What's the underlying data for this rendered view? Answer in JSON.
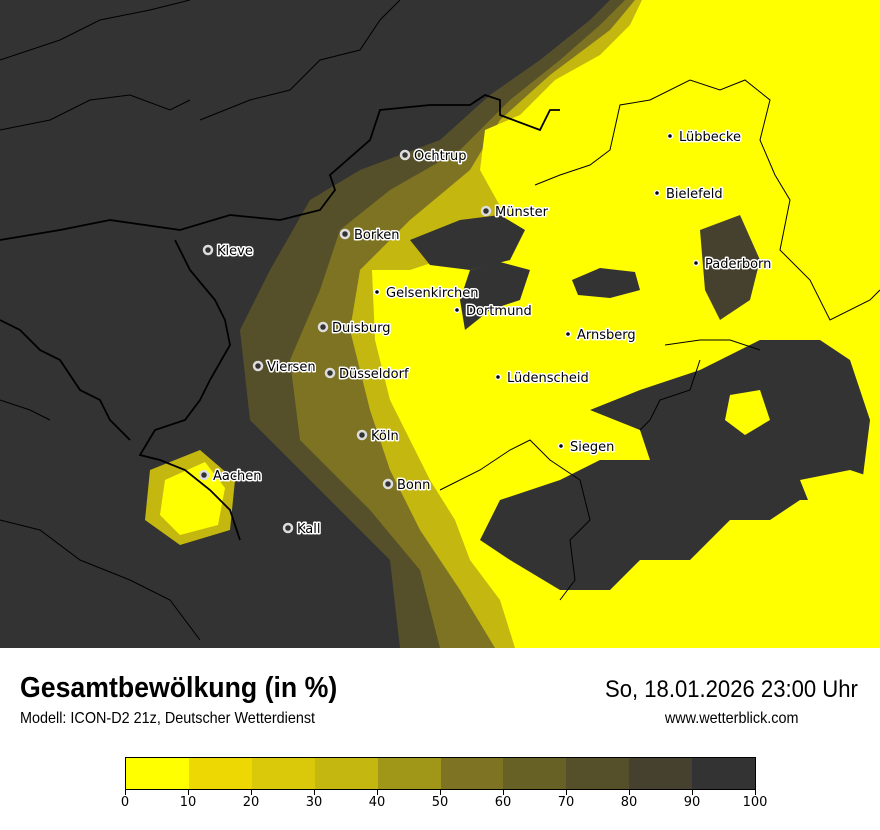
{
  "header": {
    "title": "Gesamtbewölkung (in %)",
    "subtitle": "Modell: ICON-D2 21z, Deutscher Wetterdienst",
    "datetime": "So, 18.01.2026 23:00 Uhr",
    "website": "www.wetterblick.com"
  },
  "legend": {
    "colors": [
      "#ffff00",
      "#eed803",
      "#d9c90a",
      "#c4b70f",
      "#a09618",
      "#7d7322",
      "#686125",
      "#55502a",
      "#45412e",
      "#333333"
    ],
    "ticks": [
      "0",
      "10",
      "20",
      "30",
      "40",
      "50",
      "60",
      "70",
      "80",
      "90",
      "100"
    ],
    "unit": "%"
  },
  "cities": [
    {
      "name": "Ochtrup",
      "marker": "ring"
    },
    {
      "name": "Münster",
      "marker": "ring"
    },
    {
      "name": "Borken",
      "marker": "ring"
    },
    {
      "name": "Kleve",
      "marker": "ring"
    },
    {
      "name": "Gelsenkirchen",
      "marker": "dot"
    },
    {
      "name": "Dortmund",
      "marker": "dot"
    },
    {
      "name": "Duisburg",
      "marker": "ring"
    },
    {
      "name": "Arnsberg",
      "marker": "dot"
    },
    {
      "name": "Viersen",
      "marker": "ring"
    },
    {
      "name": "Düsseldorf",
      "marker": "ring"
    },
    {
      "name": "Lüdenscheid",
      "marker": "dot"
    },
    {
      "name": "Köln",
      "marker": "ring"
    },
    {
      "name": "Siegen",
      "marker": "dot"
    },
    {
      "name": "Aachen",
      "marker": "ring"
    },
    {
      "name": "Bonn",
      "marker": "ring"
    },
    {
      "name": "Kall",
      "marker": "ring"
    },
    {
      "name": "Lübbecke",
      "marker": "dot"
    },
    {
      "name": "Bielefeld",
      "marker": "dot"
    },
    {
      "name": "Paderborn",
      "marker": "dot"
    }
  ]
}
